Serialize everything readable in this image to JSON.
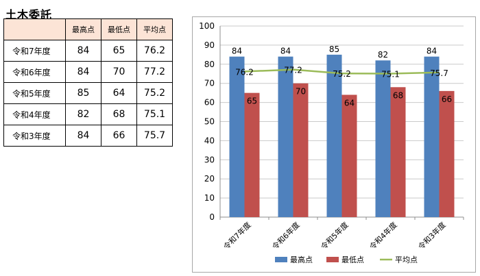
{
  "title": "土木委託",
  "table": {
    "headers": [
      "",
      "最高点",
      "最低点",
      "平均点"
    ],
    "rows": [
      {
        "label": "令和7年度",
        "max": "84",
        "min": "65",
        "avg": "76.2"
      },
      {
        "label": "令和6年度",
        "max": "84",
        "min": "70",
        "avg": "77.2"
      },
      {
        "label": "令和5年度",
        "max": "85",
        "min": "64",
        "avg": "75.2"
      },
      {
        "label": "令和4年度",
        "max": "82",
        "min": "68",
        "avg": "75.1"
      },
      {
        "label": "令和3年度",
        "max": "84",
        "min": "66",
        "avg": "75.7"
      }
    ]
  },
  "chart_data": {
    "type": "bar",
    "categories": [
      "令和7年度",
      "令和6年度",
      "令和5年度",
      "令和4年度",
      "令和3年度"
    ],
    "series": [
      {
        "name": "最高点",
        "type": "bar",
        "color": "#4f81bd",
        "values": [
          84,
          84,
          85,
          82,
          84
        ]
      },
      {
        "name": "最低点",
        "type": "bar",
        "color": "#c0504d",
        "values": [
          65,
          70,
          64,
          68,
          66
        ]
      },
      {
        "name": "平均点",
        "type": "line",
        "color": "#9bbb59",
        "values": [
          76.2,
          77.2,
          75.2,
          75.1,
          75.7
        ]
      }
    ],
    "ylim": [
      0,
      100
    ],
    "yticks": [
      0,
      10,
      20,
      30,
      40,
      50,
      60,
      70,
      80,
      90,
      100
    ],
    "grid": true,
    "legend": "bottom",
    "data_labels": true
  }
}
